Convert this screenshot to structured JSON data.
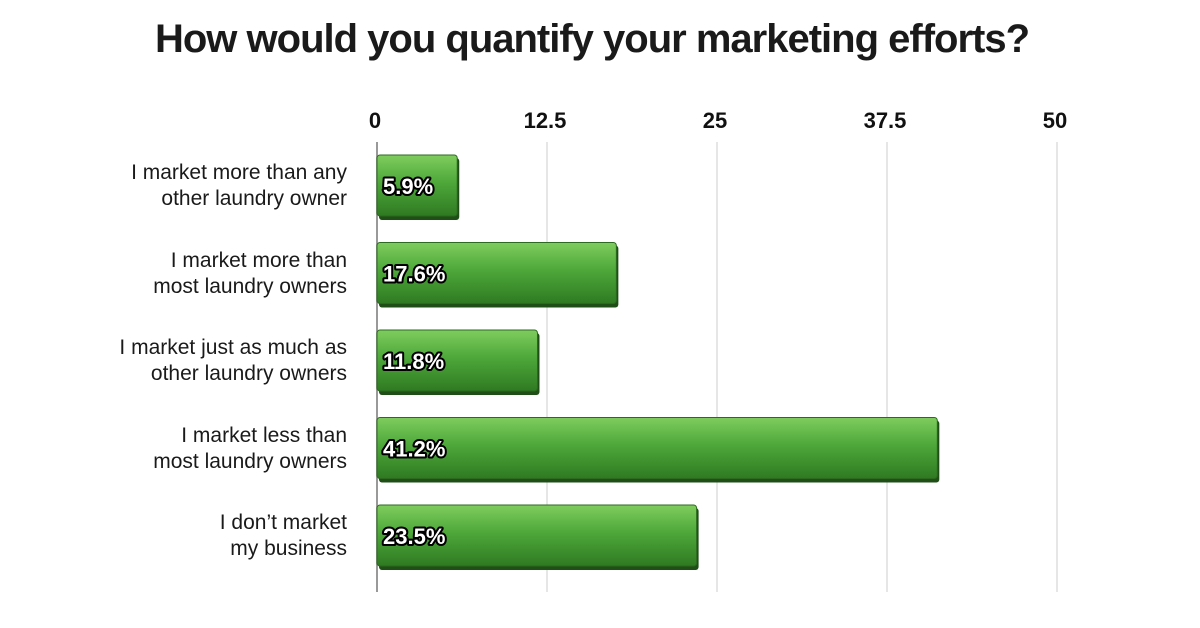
{
  "chart_data": {
    "type": "hbar",
    "title": "How would you quantify your marketing efforts?",
    "categories": [
      "I market more than any other laundry owner",
      "I market more than most laundry owners",
      "I market just as much as other laundry owners",
      "I market less than most laundry owners",
      "I don’t market my business"
    ],
    "values": [
      5.9,
      17.6,
      11.8,
      41.2,
      23.5
    ],
    "value_labels": [
      "5.9%",
      "17.6%",
      "11.8%",
      "41.2%",
      "23.5%"
    ],
    "color": "#4ea83a",
    "xlim": [
      0,
      50
    ],
    "xticks": [
      0,
      12.5,
      25,
      37.5,
      50
    ],
    "grid": true
  }
}
